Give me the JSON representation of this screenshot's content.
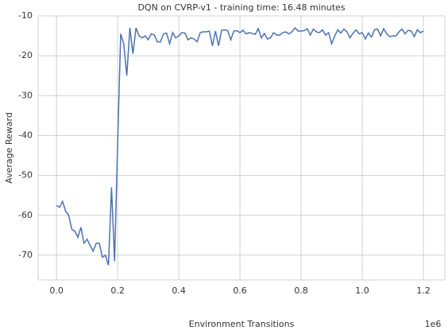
{
  "chart_data": {
    "type": "line",
    "title": "DQN on CVRP-v1 - training time: 16.48 minutes",
    "x_label": "Environment Transitions",
    "x_offset_label": "1e6",
    "y_label": "Average Reward",
    "grid": true,
    "xlim": [
      -60000,
      1270000
    ],
    "xticks": [
      {
        "value": 0,
        "label": "0.0"
      },
      {
        "value": 200000,
        "label": "0.2"
      },
      {
        "value": 400000,
        "label": "0.4"
      },
      {
        "value": 600000,
        "label": "0.6"
      },
      {
        "value": 800000,
        "label": "0.8"
      },
      {
        "value": 1000000,
        "label": "1.0"
      },
      {
        "value": 1200000,
        "label": "1.2"
      }
    ],
    "ylim": [
      -76.2,
      -10
    ],
    "yticks": [
      -70,
      -60,
      -50,
      -40,
      -30,
      -20,
      -10
    ],
    "x": [
      0,
      10000,
      20000,
      30000,
      40000,
      50000,
      60000,
      70000,
      80000,
      90000,
      100000,
      110000,
      120000,
      130000,
      140000,
      150000,
      160000,
      170000,
      180000,
      190000,
      200000,
      210000,
      220000,
      230000,
      240000,
      250000,
      260000,
      270000,
      280000,
      290000,
      300000,
      310000,
      320000,
      330000,
      340000,
      350000,
      360000,
      370000,
      380000,
      390000,
      400000,
      410000,
      420000,
      430000,
      440000,
      450000,
      460000,
      470000,
      480000,
      490000,
      500000,
      510000,
      520000,
      530000,
      540000,
      550000,
      560000,
      570000,
      580000,
      590000,
      600000,
      610000,
      620000,
      630000,
      640000,
      650000,
      660000,
      670000,
      680000,
      690000,
      700000,
      710000,
      720000,
      730000,
      740000,
      750000,
      760000,
      770000,
      780000,
      790000,
      800000,
      810000,
      820000,
      830000,
      840000,
      850000,
      860000,
      870000,
      880000,
      890000,
      900000,
      910000,
      920000,
      930000,
      940000,
      950000,
      960000,
      970000,
      980000,
      990000,
      1000000,
      1010000,
      1020000,
      1030000,
      1040000,
      1050000,
      1060000,
      1070000,
      1080000,
      1090000,
      1100000,
      1110000,
      1120000,
      1130000,
      1140000,
      1150000,
      1160000,
      1170000,
      1180000,
      1190000,
      1200000
    ],
    "series": [
      {
        "color": "#4c72b0",
        "values": [
          -57.5,
          -58,
          -56.5,
          -59,
          -60,
          -63.5,
          -64,
          -65.5,
          -63,
          -67,
          -66,
          -67.5,
          -69,
          -67,
          -67,
          -70.5,
          -70,
          -72.5,
          -53,
          -71.5,
          -42,
          -14.5,
          -17,
          -25,
          -13,
          -19.5,
          -13,
          -15,
          -15.5,
          -15,
          -16,
          -14.5,
          -14.8,
          -16.5,
          -16.5,
          -14.5,
          -14.3,
          -17,
          -14.2,
          -15.5,
          -15,
          -14.2,
          -14.3,
          -16,
          -15.5,
          -15.8,
          -16.5,
          -14.2,
          -14,
          -14,
          -13.8,
          -17.5,
          -13.8,
          -17.5,
          -13.6,
          -13.5,
          -13.7,
          -16,
          -13.8,
          -13.7,
          -14.2,
          -13.6,
          -14.5,
          -14.2,
          -14.4,
          -14.6,
          -13.2,
          -15.5,
          -14.4,
          -15.8,
          -15.5,
          -14.2,
          -14.8,
          -14.8,
          -14.2,
          -14,
          -14.5,
          -14,
          -13,
          -13.8,
          -13.8,
          -13.7,
          -13.2,
          -14.8,
          -13.3,
          -14,
          -14.2,
          -13.5,
          -14.8,
          -14.2,
          -17,
          -15,
          -13.5,
          -14.3,
          -13.3,
          -14,
          -15.5,
          -14.3,
          -13.5,
          -14.5,
          -14.2,
          -15.8,
          -14.3,
          -15.3,
          -13.5,
          -13.3,
          -15,
          -13.2,
          -14.5,
          -15.2,
          -15,
          -15,
          -14,
          -13.3,
          -14.5,
          -13.6,
          -13.8,
          -15.2,
          -13.5,
          -14.2,
          -13.8
        ]
      }
    ]
  }
}
